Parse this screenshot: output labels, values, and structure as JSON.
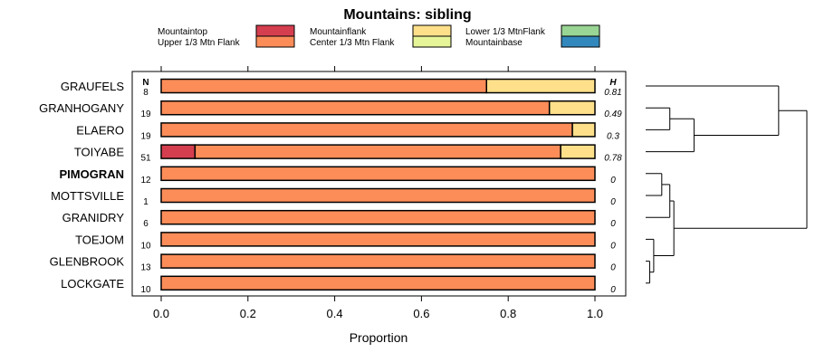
{
  "chart_data": {
    "type": "bar",
    "orientation": "horizontal",
    "stacked": true,
    "title": "Mountains: sibling",
    "xlabel": "Proportion",
    "ylabel": "",
    "xlim": [
      0,
      1
    ],
    "x_ticks": [
      "0.0",
      "0.2",
      "0.4",
      "0.6",
      "0.8",
      "1.0"
    ],
    "n_header": "N",
    "h_header": "H",
    "legend": {
      "placement": "top",
      "entries": [
        {
          "name": "Mountaintop",
          "color": "#d53e4f"
        },
        {
          "name": "Upper 1/3 Mtn Flank",
          "color": "#fc8d59"
        },
        {
          "name": "Mountainflank",
          "color": "#fee08b"
        },
        {
          "name": "Center 1/3 Mtn Flank",
          "color": "#e6f598"
        },
        {
          "name": "Lower 1/3 MtnFlank",
          "color": "#99d594"
        },
        {
          "name": "Mountainbase",
          "color": "#3288bd"
        }
      ]
    },
    "categories": [
      "GRAUFELS",
      "GRANHOGANY",
      "ELAERO",
      "TOIYABE",
      "PIMOGRAN",
      "MOTTSVILLE",
      "GRANIDRY",
      "TOEJOM",
      "GLENBROOK",
      "LOCKGATE"
    ],
    "bold_category": "PIMOGRAN",
    "n": [
      "8",
      "19",
      "19",
      "51",
      "12",
      "1",
      "6",
      "10",
      "13",
      "10"
    ],
    "h": [
      "0.81",
      "0.49",
      "0.3",
      "0.78",
      "0",
      "0",
      "0",
      "0",
      "0",
      "0"
    ],
    "series": [
      {
        "name": "Mountaintop",
        "values": [
          0,
          0,
          0,
          0.078,
          0,
          0,
          0,
          0,
          0,
          0
        ]
      },
      {
        "name": "Upper 1/3 Mtn Flank",
        "values": [
          0.75,
          0.895,
          0.948,
          0.843,
          1,
          1,
          1,
          1,
          1,
          1
        ]
      },
      {
        "name": "Mountainflank",
        "values": [
          0.25,
          0.105,
          0.052,
          0.079,
          0,
          0,
          0,
          0,
          0,
          0
        ]
      },
      {
        "name": "Center 1/3 Mtn Flank",
        "values": [
          0,
          0,
          0,
          0,
          0,
          0,
          0,
          0,
          0,
          0
        ]
      },
      {
        "name": "Lower 1/3 MtnFlank",
        "values": [
          0,
          0,
          0,
          0,
          0,
          0,
          0,
          0,
          0,
          0
        ]
      },
      {
        "name": "Mountainbase",
        "values": [
          0,
          0,
          0,
          0,
          0,
          0,
          0,
          0,
          0,
          0
        ]
      }
    ],
    "dendrogram": {
      "description": "hierarchical clustering of rows (0 = GRAUFELS ... 9 = LOCKGATE)",
      "merges": [
        {
          "a": "L1",
          "b": "L2",
          "height": 0.3
        },
        {
          "a": "L8",
          "b": "L9",
          "height": 0.05
        },
        {
          "a": "L7",
          "b": "M1",
          "height": 0.1
        },
        {
          "a": "L4",
          "b": "L5",
          "height": 0.2
        },
        {
          "a": "M3",
          "b": "L6",
          "height": 0.3
        },
        {
          "a": "M0",
          "b": "L3",
          "height": 0.6
        },
        {
          "a": "M5",
          "b": "L0",
          "height": 1.65
        },
        {
          "a": "M4",
          "b": "M2",
          "height": 0.35
        },
        {
          "a": "M7",
          "b": "M6",
          "height": 2.0
        }
      ],
      "max_height": 2.0
    }
  }
}
